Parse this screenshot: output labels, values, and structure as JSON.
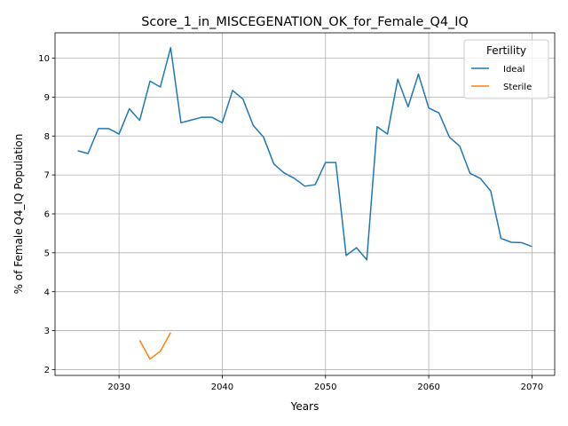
{
  "chart_data": {
    "type": "line",
    "title": "Score_1_in_MISCEGENATION_OK_for_Female_Q4_IQ",
    "xlabel": "Years",
    "ylabel": "% of Female Q4_IQ Population",
    "xlim": [
      2023.8,
      2072.2
    ],
    "ylim": [
      1.85,
      10.65
    ],
    "xticks": [
      2030,
      2040,
      2050,
      2060,
      2070
    ],
    "yticks": [
      2,
      3,
      4,
      5,
      6,
      7,
      8,
      9,
      10
    ],
    "grid": true,
    "legend": {
      "title": "Fertility",
      "position": "top-right"
    },
    "series": [
      {
        "name": "Ideal",
        "color": "#1f77b4",
        "x": [
          2026,
          2027,
          2028,
          2029,
          2030,
          2031,
          2032,
          2033,
          2034,
          2035,
          2036,
          2037,
          2038,
          2039,
          2040,
          2041,
          2042,
          2043,
          2044,
          2045,
          2046,
          2047,
          2048,
          2049,
          2050,
          2051,
          2052,
          2053,
          2054,
          2055,
          2056,
          2057,
          2058,
          2059,
          2060,
          2061,
          2062,
          2063,
          2064,
          2065,
          2066,
          2067,
          2068,
          2069,
          2070
        ],
        "y": [
          7.62,
          7.55,
          8.19,
          8.19,
          8.05,
          8.7,
          8.4,
          9.41,
          9.26,
          10.27,
          8.34,
          8.41,
          8.48,
          8.48,
          8.34,
          9.17,
          8.95,
          8.27,
          7.97,
          7.28,
          7.05,
          6.91,
          6.71,
          6.75,
          7.32,
          7.32,
          4.93,
          5.13,
          4.82,
          8.24,
          8.05,
          9.46,
          8.75,
          9.59,
          8.72,
          8.59,
          7.97,
          7.74,
          7.04,
          6.91,
          6.59,
          5.37,
          5.27,
          5.26,
          5.16
        ]
      },
      {
        "name": "Sterile",
        "color": "#ff7f0e",
        "x": [
          2032,
          2033,
          2034,
          2035
        ],
        "y": [
          2.75,
          2.27,
          2.47,
          2.95
        ]
      }
    ]
  }
}
